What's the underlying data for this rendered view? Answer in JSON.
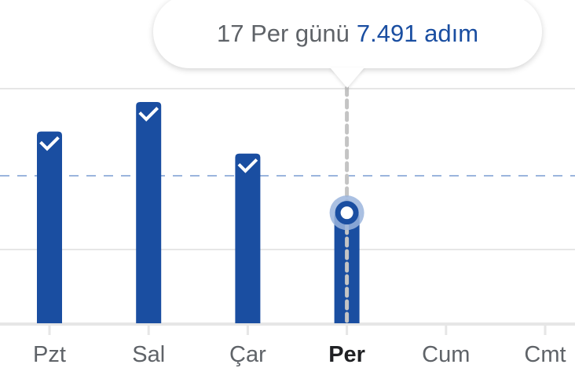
{
  "chart_data": {
    "type": "bar",
    "categories": [
      "Pzt",
      "Sal",
      "Çar",
      "Per",
      "Cum",
      "Cmt"
    ],
    "values": [
      13000,
      15000,
      11500,
      7491,
      null,
      null
    ],
    "goal": 10000,
    "goal_met": [
      true,
      true,
      true,
      false,
      false,
      false
    ],
    "selected_index": 3,
    "ylim": [
      0,
      16000
    ],
    "grid": true,
    "title": "",
    "xlabel": "",
    "ylabel": "",
    "colors": {
      "bar": "#1a4ea1",
      "goal_line": "#9bb5dd",
      "grid": "#e6e6e6",
      "marker_halo": "#9bb5dd"
    }
  },
  "tooltip": {
    "date": "17 Per günü",
    "value": "7.491 adım"
  }
}
